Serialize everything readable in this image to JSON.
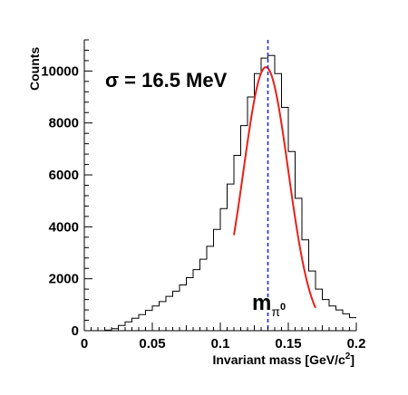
{
  "chart_data": {
    "type": "line",
    "xlabel_main": "Invariant mass [GeV/c",
    "xlabel_sup": "2",
    "xlabel_end": "]",
    "ylabel": "Counts",
    "xlim": [
      0,
      0.2
    ],
    "ylim": [
      0,
      11200
    ],
    "x_ticks": [
      0,
      0.05,
      0.1,
      0.15,
      0.2
    ],
    "x_tick_labels": [
      "0",
      "0.05",
      "0.1",
      "0.15",
      "0.2"
    ],
    "y_ticks": [
      0,
      2000,
      4000,
      6000,
      8000,
      10000
    ],
    "y_tick_labels": [
      "0",
      "2000",
      "4000",
      "6000",
      "8000",
      "10000"
    ],
    "grid": false,
    "annotation_sigma": "σ = 16.5 MeV",
    "annotation_marker_main": "m",
    "annotation_marker_sub": "π",
    "annotation_marker_supsub": "0",
    "marker_x": 0.135,
    "series": [
      {
        "style": "histogram",
        "color": "#000000",
        "x": [
          0.0,
          0.005,
          0.01,
          0.015,
          0.02,
          0.025,
          0.03,
          0.035,
          0.04,
          0.045,
          0.05,
          0.055,
          0.06,
          0.065,
          0.07,
          0.075,
          0.08,
          0.085,
          0.09,
          0.095,
          0.1,
          0.105,
          0.11,
          0.115,
          0.12,
          0.125,
          0.13,
          0.135,
          0.14,
          0.145,
          0.15,
          0.155,
          0.16,
          0.165,
          0.17,
          0.175,
          0.18,
          0.185,
          0.19,
          0.195,
          0.2
        ],
        "y": [
          0,
          0,
          0,
          20,
          80,
          200,
          340,
          480,
          620,
          780,
          950,
          1120,
          1320,
          1520,
          1760,
          2040,
          2350,
          2750,
          3250,
          3900,
          4700,
          5650,
          6750,
          7900,
          9000,
          9900,
          10500,
          10600,
          9900,
          8600,
          6900,
          5100,
          3500,
          2300,
          1600,
          1200,
          950,
          800,
          650,
          500,
          380
        ]
      },
      {
        "style": "fit",
        "color": "#e8201a",
        "mean": 0.1335,
        "sigma": 0.0165,
        "amplitude": 10150,
        "range": [
          0.11,
          0.17
        ]
      }
    ]
  }
}
